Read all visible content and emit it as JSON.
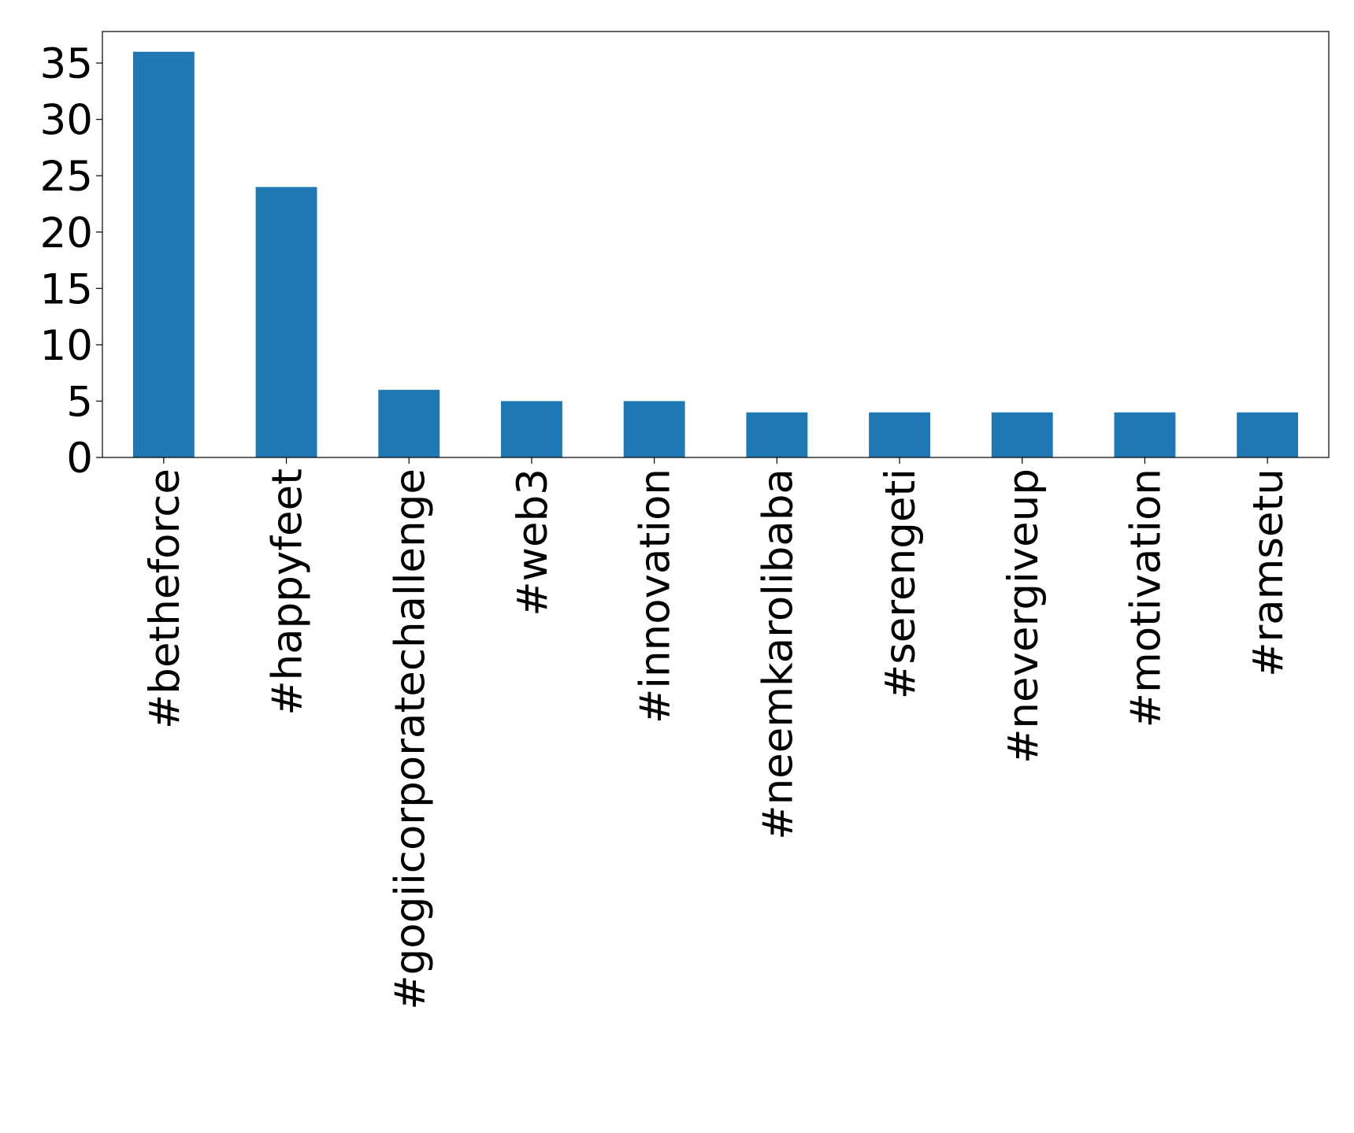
{
  "chart_data": {
    "type": "bar",
    "categories": [
      "#betheforce",
      "#happyfeet",
      "#gogiicorporatechallenge",
      "#web3",
      "#innovation",
      "#neemkarolibaba",
      "#serengeti",
      "#nevergiveup",
      "#motivation",
      "#ramsetu"
    ],
    "values": [
      36,
      24,
      6,
      5,
      5,
      4,
      4,
      4,
      4,
      4
    ],
    "color": "#1f77b4",
    "ylim": [
      0,
      37.8
    ],
    "yticks": [
      0,
      5,
      10,
      15,
      20,
      25,
      30,
      35
    ],
    "grid": false
  }
}
